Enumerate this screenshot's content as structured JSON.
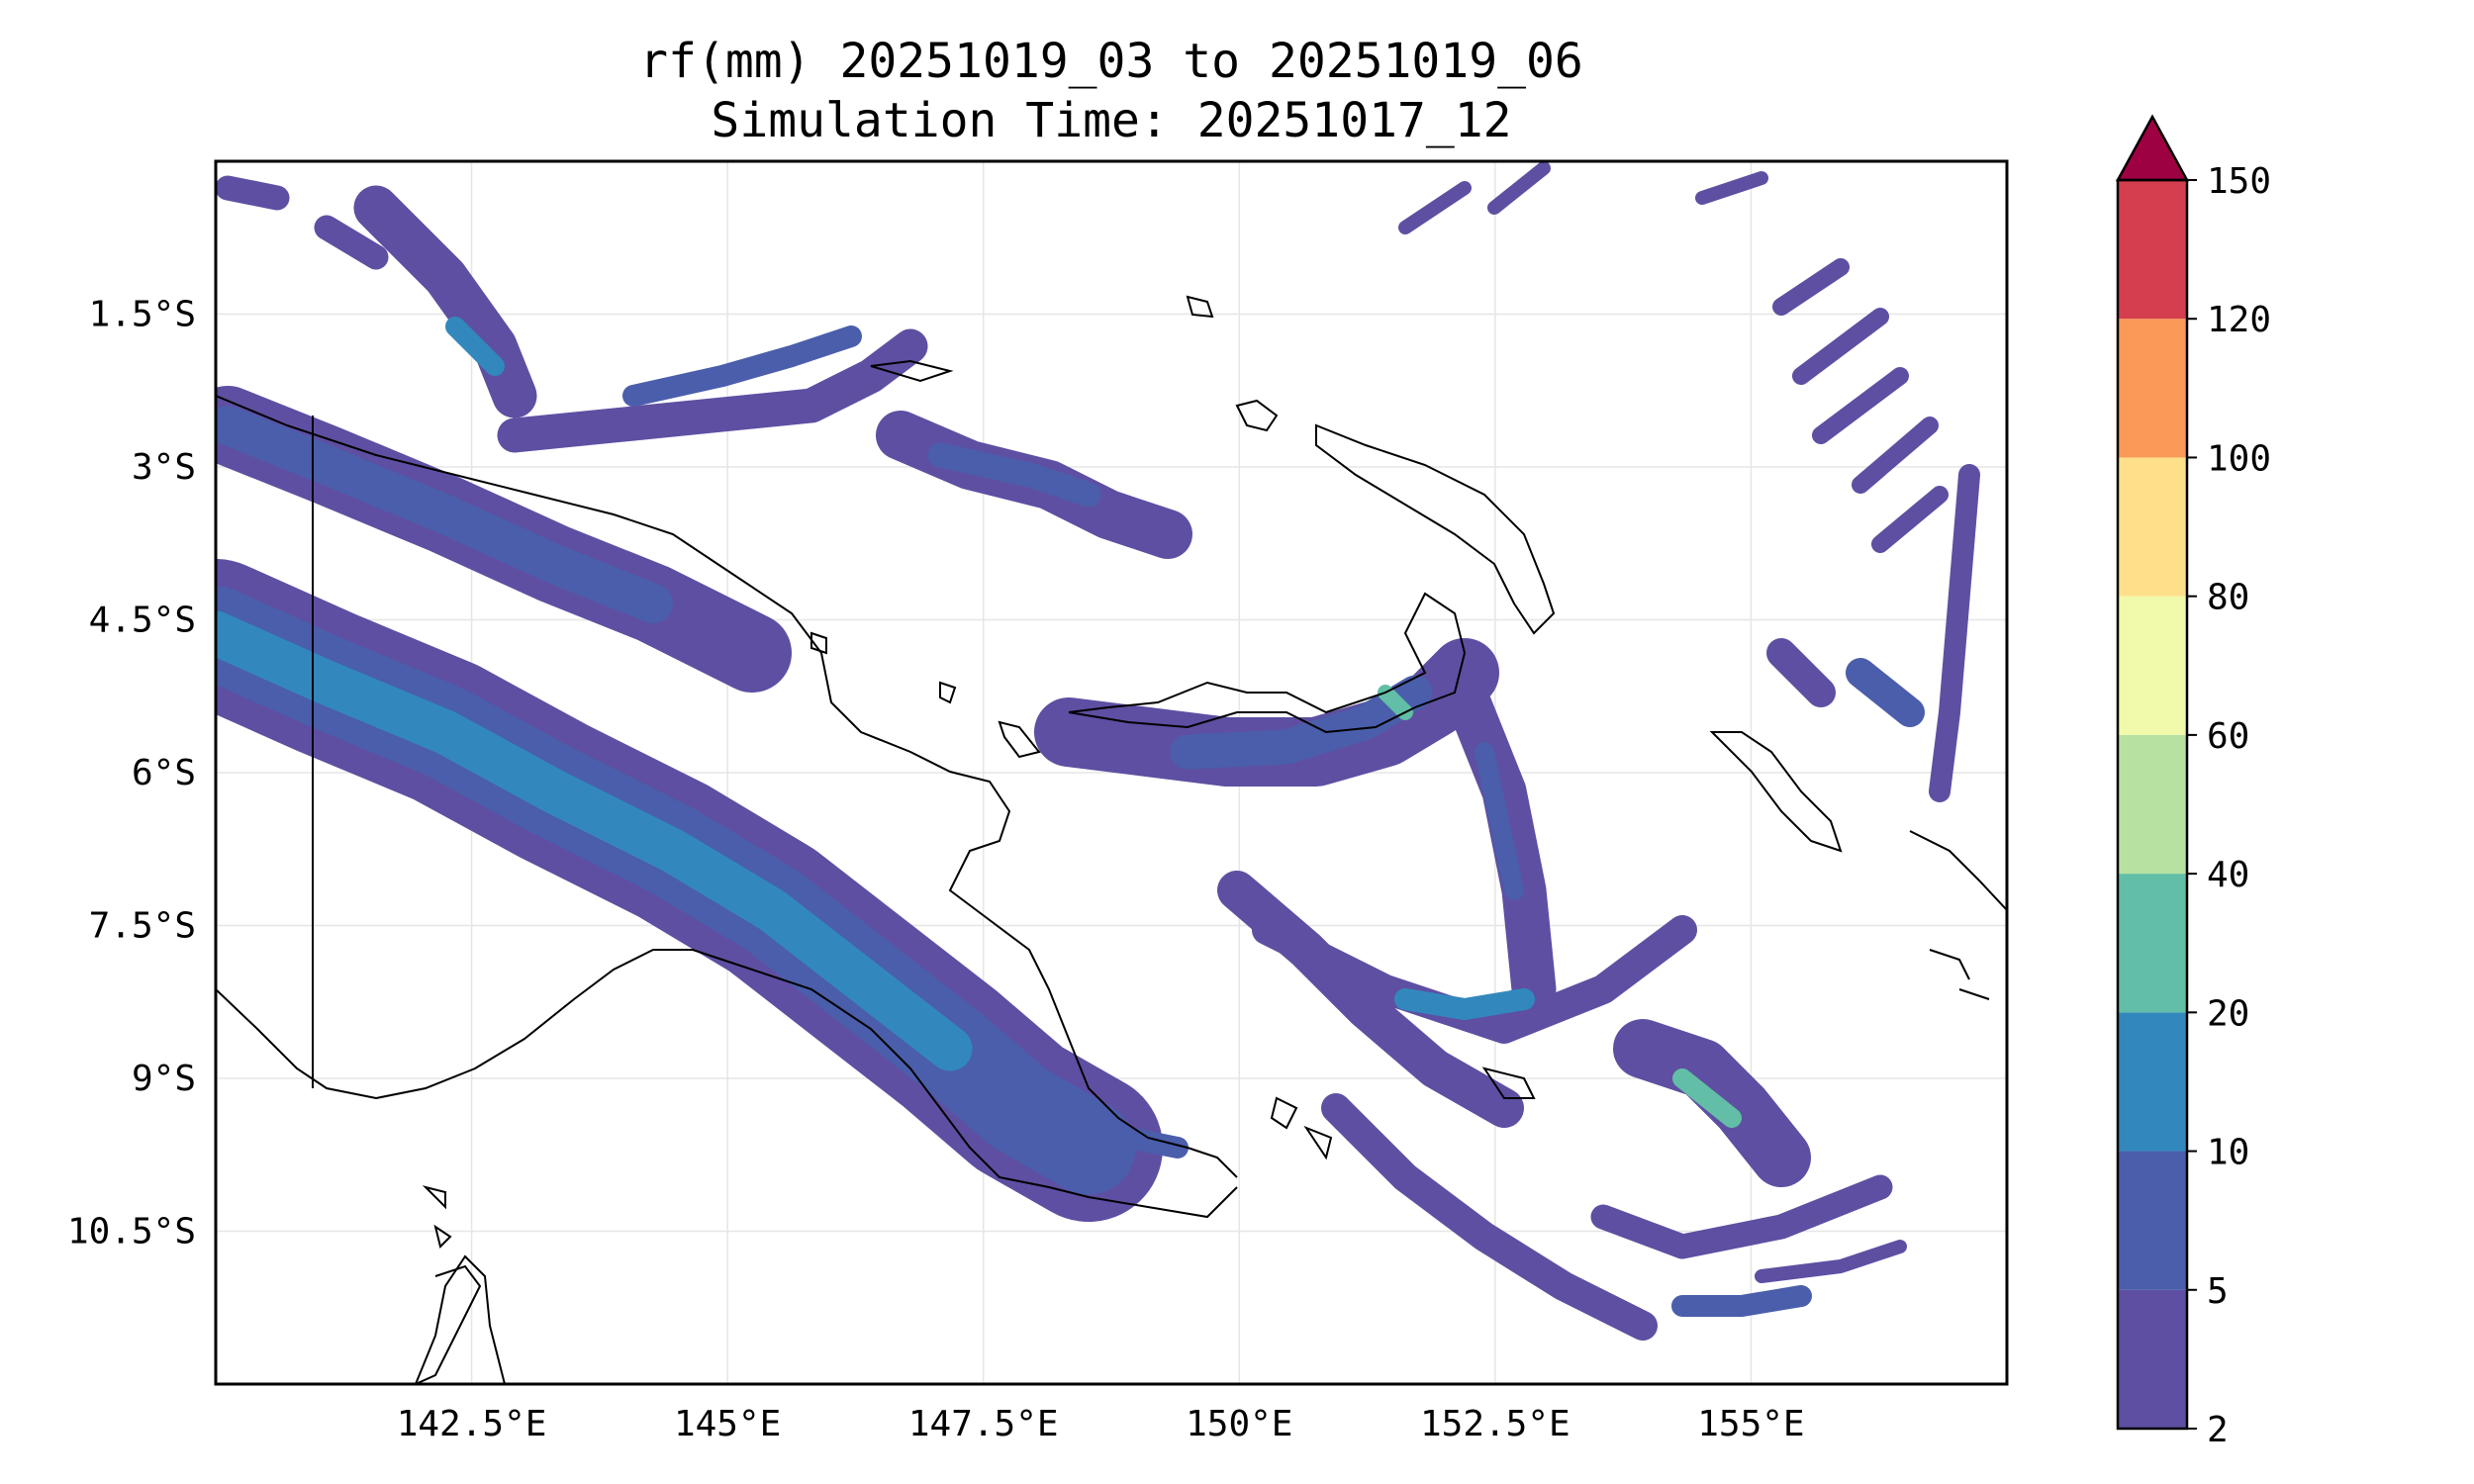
{
  "title": {
    "line1": "rf(mm) 20251019_03 to 20251019_06",
    "line2": "Simulation Time: 20251017_12"
  },
  "map": {
    "projection": "PlateCarree",
    "lon_range": [
      140.0,
      157.5
    ],
    "lat_range": [
      -12.0,
      0.0
    ],
    "gridlines": true,
    "x_ticks": [
      {
        "value": 142.5,
        "label": "142.5°E"
      },
      {
        "value": 145.0,
        "label": "145°E"
      },
      {
        "value": 147.5,
        "label": "147.5°E"
      },
      {
        "value": 150.0,
        "label": "150°E"
      },
      {
        "value": 152.5,
        "label": "152.5°E"
      },
      {
        "value": 155.0,
        "label": "155°E"
      }
    ],
    "y_ticks": [
      {
        "value": -1.5,
        "label": "1.5°S"
      },
      {
        "value": -3.0,
        "label": "3°S"
      },
      {
        "value": -4.5,
        "label": "4.5°S"
      },
      {
        "value": -6.0,
        "label": "6°S"
      },
      {
        "value": -7.5,
        "label": "7.5°S"
      },
      {
        "value": -9.0,
        "label": "9°S"
      },
      {
        "value": -10.5,
        "label": "10.5°S"
      }
    ]
  },
  "colorbar": {
    "extend": "max",
    "levels": [
      {
        "label": "2",
        "color": "#5e4fa2"
      },
      {
        "label": "5",
        "color": "#4a5eab"
      },
      {
        "label": "10",
        "color": "#3288bd"
      },
      {
        "label": "20",
        "color": "#62bea6"
      },
      {
        "label": "40",
        "color": "#b7e1a1"
      },
      {
        "label": "60",
        "color": "#f1f9aa"
      },
      {
        "label": "80",
        "color": "#fee08b"
      },
      {
        "label": "100",
        "color": "#fa9958"
      },
      {
        "label": "120",
        "color": "#d53e4f"
      },
      {
        "label": "150",
        "color": "#9e0142"
      }
    ]
  }
}
